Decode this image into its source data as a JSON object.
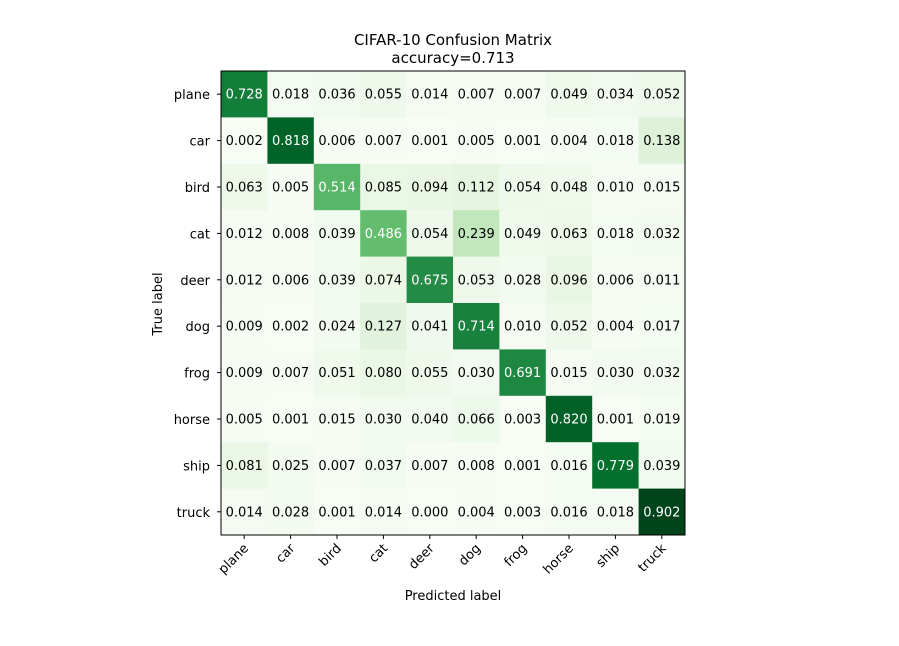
{
  "chart_data": {
    "type": "heatmap",
    "title": "CIFAR-10 Confusion Matrix",
    "subtitle": "accuracy=0.713",
    "xlabel": "Predicted label",
    "ylabel": "True label",
    "x_categories": [
      "plane",
      "car",
      "bird",
      "cat",
      "deer",
      "dog",
      "frog",
      "horse",
      "ship",
      "truck"
    ],
    "y_categories": [
      "plane",
      "car",
      "bird",
      "cat",
      "deer",
      "dog",
      "frog",
      "horse",
      "ship",
      "truck"
    ],
    "values": [
      [
        0.728,
        0.018,
        0.036,
        0.055,
        0.014,
        0.007,
        0.007,
        0.049,
        0.034,
        0.052
      ],
      [
        0.002,
        0.818,
        0.006,
        0.007,
        0.001,
        0.005,
        0.001,
        0.004,
        0.018,
        0.138
      ],
      [
        0.063,
        0.005,
        0.514,
        0.085,
        0.094,
        0.112,
        0.054,
        0.048,
        0.01,
        0.015
      ],
      [
        0.012,
        0.008,
        0.039,
        0.486,
        0.054,
        0.239,
        0.049,
        0.063,
        0.018,
        0.032
      ],
      [
        0.012,
        0.006,
        0.039,
        0.074,
        0.675,
        0.053,
        0.028,
        0.096,
        0.006,
        0.011
      ],
      [
        0.009,
        0.002,
        0.024,
        0.127,
        0.041,
        0.714,
        0.01,
        0.052,
        0.004,
        0.017
      ],
      [
        0.009,
        0.007,
        0.051,
        0.08,
        0.055,
        0.03,
        0.691,
        0.015,
        0.03,
        0.032
      ],
      [
        0.005,
        0.001,
        0.015,
        0.03,
        0.04,
        0.066,
        0.003,
        0.82,
        0.001,
        0.019
      ],
      [
        0.081,
        0.025,
        0.007,
        0.037,
        0.007,
        0.008,
        0.001,
        0.016,
        0.779,
        0.039
      ],
      [
        0.014,
        0.028,
        0.001,
        0.014,
        0.0,
        0.004,
        0.003,
        0.016,
        0.018,
        0.902
      ]
    ],
    "value_format": "0.000",
    "colormap": "Greens",
    "colormap_stops": [
      "#f7fcf5",
      "#e5f5e0",
      "#c7e9c0",
      "#a1d99b",
      "#74c476",
      "#41ab5d",
      "#238b45",
      "#006d2c",
      "#00441b"
    ],
    "vmin": 0.0,
    "vmax": 0.902,
    "text_color_light": "#ffffff",
    "text_color_dark": "#000000",
    "text_threshold": 0.451,
    "grid": false,
    "colorbar": false
  }
}
